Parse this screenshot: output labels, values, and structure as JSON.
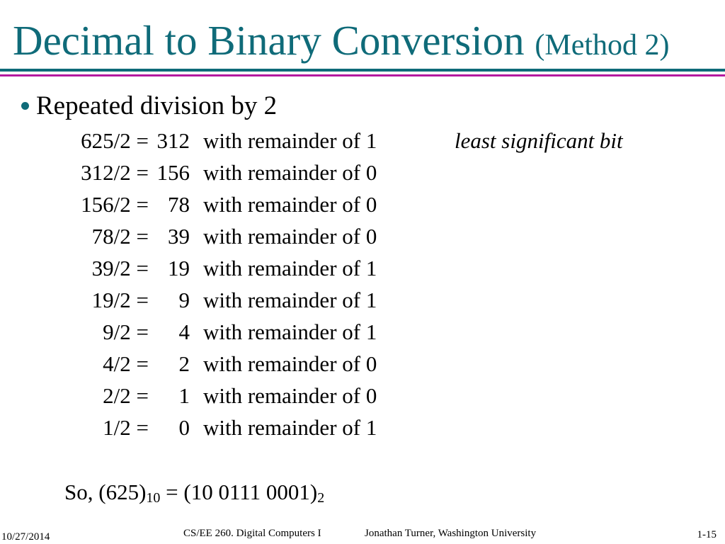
{
  "title": {
    "main": "Decimal to Binary Conversion",
    "sub": "(Method 2)"
  },
  "colors": {
    "accent": "#0f6b79",
    "rule_secondary": "#b4199f"
  },
  "bullet": {
    "icon": "bullet-dot-icon",
    "text": "Repeated division by 2"
  },
  "division_rows": [
    {
      "expr": "625/2 =",
      "quotient": "312",
      "text": "with remainder of 1",
      "note": "least significant bit"
    },
    {
      "expr": "312/2 =",
      "quotient": "156",
      "text": "with remainder of 0",
      "note": ""
    },
    {
      "expr": "156/2 =",
      "quotient": "78",
      "text": "with remainder of 0",
      "note": ""
    },
    {
      "expr": "78/2 =",
      "quotient": "39",
      "text": "with remainder of 0",
      "note": ""
    },
    {
      "expr": "39/2 =",
      "quotient": "19",
      "text": "with remainder of 1",
      "note": ""
    },
    {
      "expr": "19/2 =",
      "quotient": "9",
      "text": "with remainder of 1",
      "note": ""
    },
    {
      "expr": "9/2 =",
      "quotient": "4",
      "text": "with remainder of 1",
      "note": ""
    },
    {
      "expr": "4/2 =",
      "quotient": "2",
      "text": "with remainder of 0",
      "note": ""
    },
    {
      "expr": "2/2 =",
      "quotient": "1",
      "text": "with remainder of 0",
      "note": ""
    },
    {
      "expr": "1/2 =",
      "quotient": "0",
      "text": "with remainder of 1",
      "note": ""
    }
  ],
  "conclusion": {
    "prefix": "So, (625)",
    "base_from": "10",
    "middle": " = (10 0111 0001)",
    "base_to": "2"
  },
  "footer": {
    "date": "10/27/2014",
    "course": "CS/EE 260. Digital Computers I",
    "author": "Jonathan Turner, Washington University",
    "page": "1-15"
  }
}
